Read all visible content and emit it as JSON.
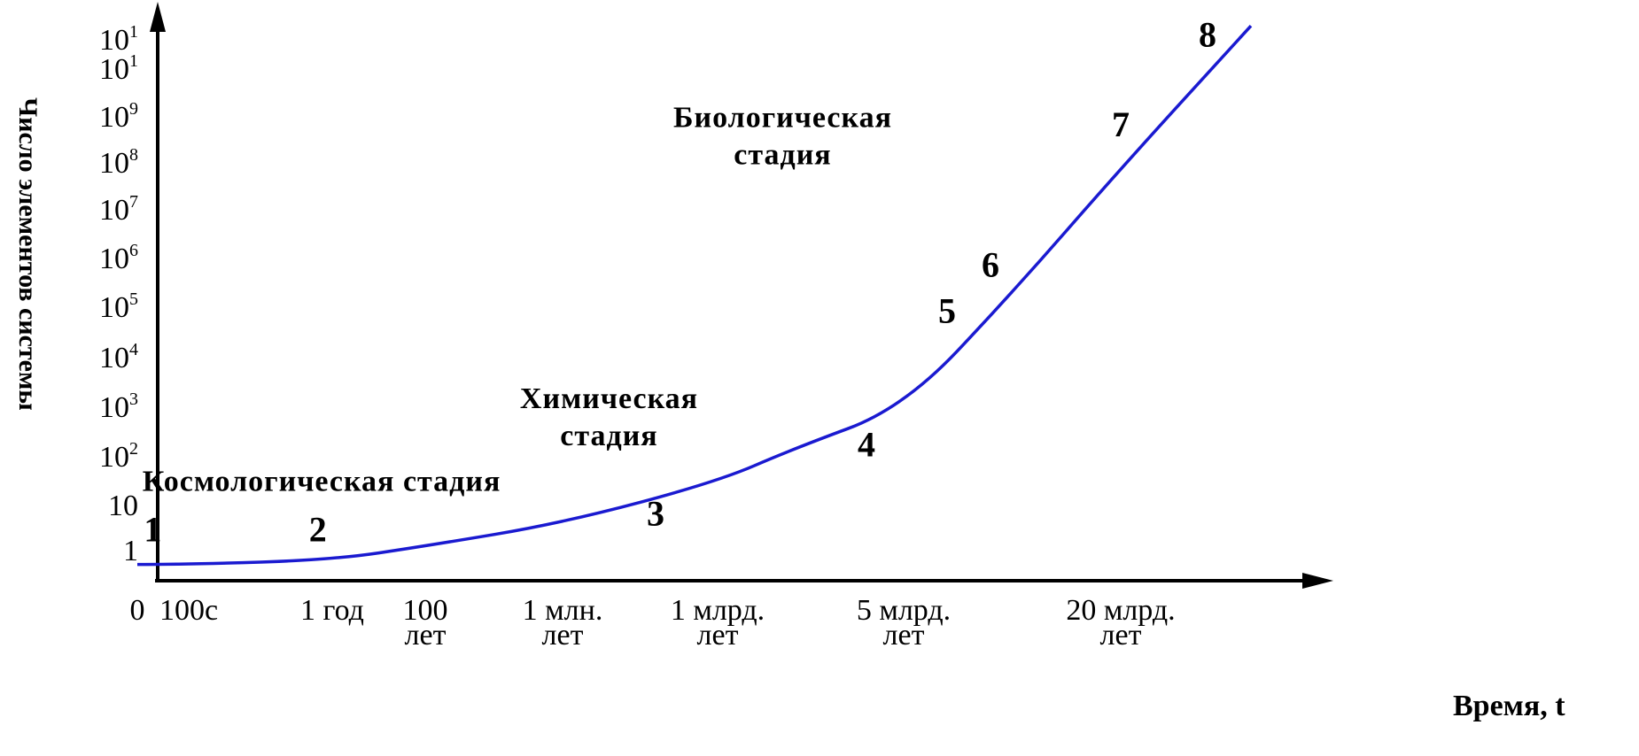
{
  "chart_data": {
    "type": "line",
    "xlabel": "Время, t",
    "ylabel": "Число элементов системы",
    "x_ticks": [
      {
        "line1": "0",
        "line2": ""
      },
      {
        "line1": "100с",
        "line2": ""
      },
      {
        "line1": "1 год",
        "line2": ""
      },
      {
        "line1": "100",
        "line2": "лет"
      },
      {
        "line1": "1 млн.",
        "line2": "лет"
      },
      {
        "line1": "1 млрд.",
        "line2": "лет"
      },
      {
        "line1": "5 млрд.",
        "line2": "лет"
      },
      {
        "line1": "20 млрд.",
        "line2": "лет"
      }
    ],
    "y_ticks": [
      {
        "base": "1",
        "sup": ""
      },
      {
        "base": "10",
        "sup": ""
      },
      {
        "base": "10",
        "sup": "2"
      },
      {
        "base": "10",
        "sup": "3"
      },
      {
        "base": "10",
        "sup": "4"
      },
      {
        "base": "10",
        "sup": "5"
      },
      {
        "base": "10",
        "sup": "6"
      },
      {
        "base": "10",
        "sup": "7"
      },
      {
        "base": "10",
        "sup": "8"
      },
      {
        "base": "10",
        "sup": "9"
      },
      {
        "base": "10",
        "sup": "1"
      },
      {
        "base": "10",
        "sup": "1"
      }
    ],
    "series": [
      {
        "color": "#1a1ad0",
        "x": [
          0,
          1,
          2,
          3,
          4,
          5,
          5.4,
          6,
          6.5,
          7,
          7.6
        ],
        "y": [
          -0.3,
          -0.3,
          -0.2,
          0.1,
          0.6,
          1.5,
          2.2,
          3.1,
          5.6,
          8.3,
          11.4
        ]
      }
    ],
    "point_labels": [
      {
        "label": "1",
        "x": 0.3,
        "y": 0.2
      },
      {
        "label": "2",
        "x": 1.9,
        "y": 0.2
      },
      {
        "label": "3",
        "x": 4.6,
        "y": 0.55
      },
      {
        "label": "4",
        "x": 5.8,
        "y": 2.05
      },
      {
        "label": "5",
        "x": 6.2,
        "y": 4.95
      },
      {
        "label": "6",
        "x": 6.4,
        "y": 5.95
      },
      {
        "label": "7",
        "x": 7.0,
        "y": 9.0
      },
      {
        "label": "8",
        "x": 7.4,
        "y": 10.95
      }
    ],
    "annotations": [
      {
        "lines": [
          "Космологическая стадия"
        ],
        "x": 0.1,
        "y": 1.3,
        "anchor": "start"
      },
      {
        "lines": [
          "Химическая",
          "стадия"
        ],
        "x": 4.3,
        "y": 3.1,
        "anchor": "middle"
      },
      {
        "lines": [
          "Биологическая",
          "стадия"
        ],
        "x": 5.35,
        "y": 9.2,
        "anchor": "middle"
      }
    ]
  }
}
